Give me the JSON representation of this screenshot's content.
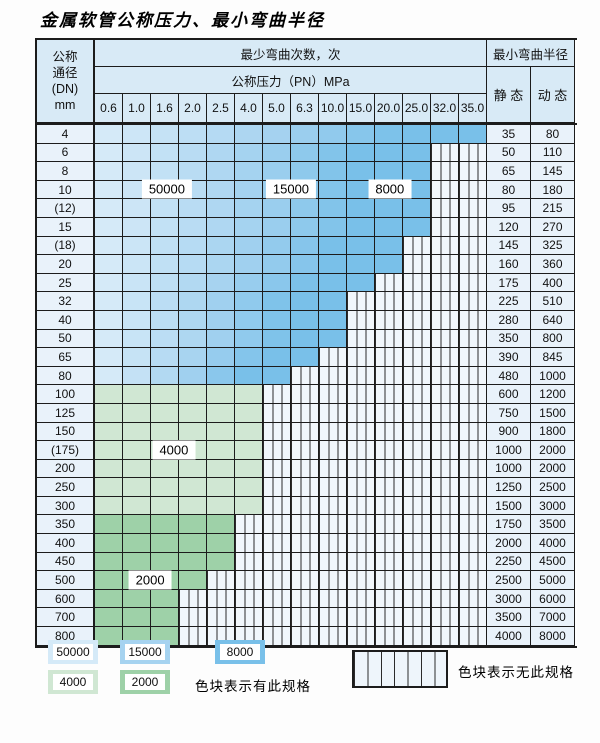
{
  "title": "金属软管公称压力、最小弯曲半径",
  "header": {
    "dn_label_lines": [
      "公称",
      "通径",
      "(DN)",
      "mm"
    ],
    "cycles_label": "最少弯曲次数，次",
    "radius_label": "最小弯曲半径",
    "pressure_label": "公称压力（PN）MPa",
    "static_label": "静 态",
    "dynamic_label": "动 态",
    "pressures": [
      "0.6",
      "1.0",
      "1.6",
      "2.0",
      "2.5",
      "4.0",
      "5.0",
      "6.3",
      "10.0",
      "15.0",
      "20.0",
      "25.0",
      "32.0",
      "35.0"
    ]
  },
  "colors": {
    "header_bg": "#d8eaf6",
    "side_cell_bg": "#e9f2fa",
    "band_50000": "#d5eaf8",
    "band_15000": "#a6d3f0",
    "band_8000": "#79c0e9",
    "band_4000": "#d0e7d3",
    "band_2000": "#9ed1a8",
    "no_spec_fill": "#f1f7fc",
    "grid_line": "#2b2b2b"
  },
  "rows": [
    {
      "dn": "4",
      "colored_through": "35.0",
      "band": "blue",
      "static": "35",
      "dynamic": "80"
    },
    {
      "dn": "6",
      "colored_through": "25.0",
      "band": "blue",
      "static": "50",
      "dynamic": "110"
    },
    {
      "dn": "8",
      "colored_through": "25.0",
      "band": "blue",
      "static": "65",
      "dynamic": "145"
    },
    {
      "dn": "10",
      "colored_through": "25.0",
      "band": "blue",
      "static": "80",
      "dynamic": "180"
    },
    {
      "dn": "(12)",
      "colored_through": "25.0",
      "band": "blue",
      "static": "95",
      "dynamic": "215"
    },
    {
      "dn": "15",
      "colored_through": "25.0",
      "band": "blue",
      "static": "120",
      "dynamic": "270"
    },
    {
      "dn": "(18)",
      "colored_through": "20.0",
      "band": "blue",
      "static": "145",
      "dynamic": "325"
    },
    {
      "dn": "20",
      "colored_through": "20.0",
      "band": "blue",
      "static": "160",
      "dynamic": "360"
    },
    {
      "dn": "25",
      "colored_through": "15.0",
      "band": "blue",
      "static": "175",
      "dynamic": "400"
    },
    {
      "dn": "32",
      "colored_through": "10.0",
      "band": "blue",
      "static": "225",
      "dynamic": "510"
    },
    {
      "dn": "40",
      "colored_through": "10.0",
      "band": "blue",
      "static": "280",
      "dynamic": "640"
    },
    {
      "dn": "50",
      "colored_through": "10.0",
      "band": "blue",
      "static": "350",
      "dynamic": "800"
    },
    {
      "dn": "65",
      "colored_through": "6.3",
      "band": "blue",
      "static": "390",
      "dynamic": "845"
    },
    {
      "dn": "80",
      "colored_through": "5.0",
      "band": "blue",
      "static": "480",
      "dynamic": "1000"
    },
    {
      "dn": "100",
      "colored_through": "4.0",
      "band": "green_4000",
      "static": "600",
      "dynamic": "1200"
    },
    {
      "dn": "125",
      "colored_through": "4.0",
      "band": "green_4000",
      "static": "750",
      "dynamic": "1500"
    },
    {
      "dn": "150",
      "colored_through": "4.0",
      "band": "green_4000",
      "static": "900",
      "dynamic": "1800"
    },
    {
      "dn": "(175)",
      "colored_through": "4.0",
      "band": "green_4000",
      "static": "1000",
      "dynamic": "2000"
    },
    {
      "dn": "200",
      "colored_through": "4.0",
      "band": "green_4000",
      "static": "1000",
      "dynamic": "2000"
    },
    {
      "dn": "250",
      "colored_through": "4.0",
      "band": "green_4000",
      "static": "1250",
      "dynamic": "2500"
    },
    {
      "dn": "300",
      "colored_through": "4.0",
      "band": "green_4000",
      "static": "1500",
      "dynamic": "3000"
    },
    {
      "dn": "350",
      "colored_through": "2.5",
      "band": "green_2000",
      "static": "1750",
      "dynamic": "3500"
    },
    {
      "dn": "400",
      "colored_through": "2.5",
      "band": "green_2000",
      "static": "2000",
      "dynamic": "4000"
    },
    {
      "dn": "450",
      "colored_through": "2.5",
      "band": "green_2000",
      "static": "2250",
      "dynamic": "4500"
    },
    {
      "dn": "500",
      "colored_through": "2.0",
      "band": "green_2000",
      "static": "2500",
      "dynamic": "5000"
    },
    {
      "dn": "600",
      "colored_through": "1.6",
      "band": "green_2000",
      "static": "3000",
      "dynamic": "6000"
    },
    {
      "dn": "700",
      "colored_through": "1.6",
      "band": "green_2000",
      "static": "3500",
      "dynamic": "7000"
    },
    {
      "dn": "800",
      "colored_through": "1.6",
      "band": "green_2000",
      "static": "4000",
      "dynamic": "8000"
    }
  ],
  "zone_labels": [
    {
      "text": "50000",
      "col": 2.64,
      "row": 3.55
    },
    {
      "text": "15000",
      "col": 7.07,
      "row": 3.55
    },
    {
      "text": "8000",
      "col": 10.6,
      "row": 3.55
    },
    {
      "text": "4000",
      "col": 2.89,
      "row": 17.6
    },
    {
      "text": "2000",
      "col": 2.04,
      "row": 24.55
    }
  ],
  "legend": {
    "items": [
      {
        "label": "50000",
        "color_key": "band_50000",
        "row": 1,
        "slot": 0
      },
      {
        "label": "15000",
        "color_key": "band_15000",
        "row": 1,
        "slot": 1
      },
      {
        "label": "8000",
        "color_key": "band_8000",
        "row": 1,
        "slot": 2
      },
      {
        "label": "4000",
        "color_key": "band_4000",
        "row": 2,
        "slot": 0
      },
      {
        "label": "2000",
        "color_key": "band_2000",
        "row": 2,
        "slot": 1
      }
    ],
    "has_spec_note": "色块表示有此规格",
    "no_spec_note": "色块表示无此规格"
  }
}
